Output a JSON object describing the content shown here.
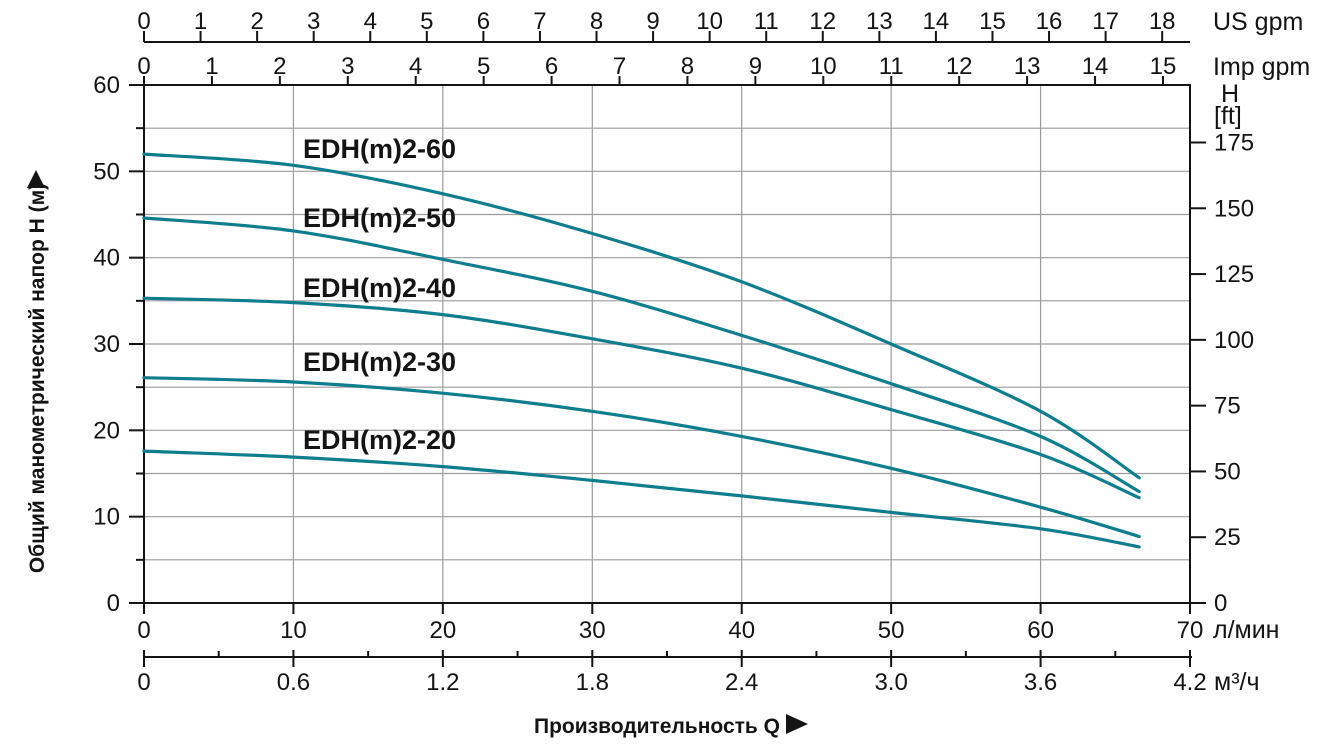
{
  "colors": {
    "curve": "#0e7e8f",
    "grid": "#9b9b9b",
    "axis": "#141414",
    "text": "#141414",
    "background": "#ffffff"
  },
  "chart_data": {
    "type": "line",
    "title": "",
    "xlabel": "Производительность Q",
    "xlabel_arrow": "right",
    "ylabel": "Общий манометрический напор H (м)",
    "ylabel_arrow": "up",
    "grid": "on",
    "grid_x_step_lmin": 10,
    "grid_y_step_m": 5,
    "x_axis_lmin": {
      "unit": "л/мин",
      "range": [
        0,
        70
      ],
      "ticks": [
        0,
        10,
        20,
        30,
        40,
        50,
        60,
        70
      ]
    },
    "x_axis_m3h": {
      "unit": "м³/ч",
      "range": [
        0,
        4.2
      ],
      "ticks": [
        "0",
        "0.6",
        "1.2",
        "1.8",
        "2.4",
        "3.0",
        "3.6",
        "4.2"
      ],
      "minor_step": 0.3
    },
    "x_axis_us_gpm": {
      "unit": "US gpm",
      "ticks": [
        0,
        1,
        2,
        3,
        4,
        5,
        6,
        7,
        8,
        9,
        10,
        11,
        12,
        13,
        14,
        15,
        16,
        17,
        18
      ],
      "lmin_per_unit": 3.78541
    },
    "x_axis_imp_gpm": {
      "unit": "Imp gpm",
      "ticks": [
        0,
        1,
        2,
        3,
        4,
        5,
        6,
        7,
        8,
        9,
        10,
        11,
        12,
        13,
        14,
        15
      ],
      "lmin_per_unit": 4.54609
    },
    "y_axis_m": {
      "unit": "H (м)",
      "range": [
        0,
        60
      ],
      "ticks": [
        0,
        10,
        20,
        30,
        40,
        50,
        60
      ],
      "minor_step": 5
    },
    "y_axis_ft": {
      "unit_lines": [
        "H",
        "[ft]"
      ],
      "ticks": [
        0,
        25,
        50,
        75,
        100,
        125,
        150,
        175
      ],
      "m_per_unit": 0.3048
    },
    "series": [
      {
        "label": "EDH(m)2-60",
        "q_lmin": [
          0,
          10,
          20,
          30,
          40,
          50,
          60,
          66.6
        ],
        "h_m": [
          52.0,
          50.7,
          47.4,
          42.8,
          37.2,
          30.0,
          22.2,
          14.5
        ]
      },
      {
        "label": "EDH(m)2-50",
        "q_lmin": [
          0,
          10,
          20,
          30,
          40,
          50,
          60,
          66.6
        ],
        "h_m": [
          44.6,
          43.1,
          39.8,
          36.1,
          31.0,
          25.4,
          19.3,
          12.9
        ]
      },
      {
        "label": "EDH(m)2-40",
        "q_lmin": [
          0,
          10,
          20,
          30,
          40,
          50,
          60,
          66.6
        ],
        "h_m": [
          35.3,
          34.8,
          33.4,
          30.6,
          27.2,
          22.4,
          17.2,
          12.2
        ]
      },
      {
        "label": "EDH(m)2-30",
        "q_lmin": [
          0,
          10,
          20,
          30,
          40,
          50,
          60,
          66.6
        ],
        "h_m": [
          26.1,
          25.6,
          24.3,
          22.2,
          19.3,
          15.6,
          11.1,
          7.7
        ]
      },
      {
        "label": "EDH(m)2-20",
        "q_lmin": [
          0,
          10,
          20,
          30,
          40,
          50,
          60,
          66.6
        ],
        "h_m": [
          17.6,
          16.9,
          15.8,
          14.2,
          12.4,
          10.5,
          8.6,
          6.5
        ]
      }
    ],
    "legend_position": "labels-on-plot"
  }
}
